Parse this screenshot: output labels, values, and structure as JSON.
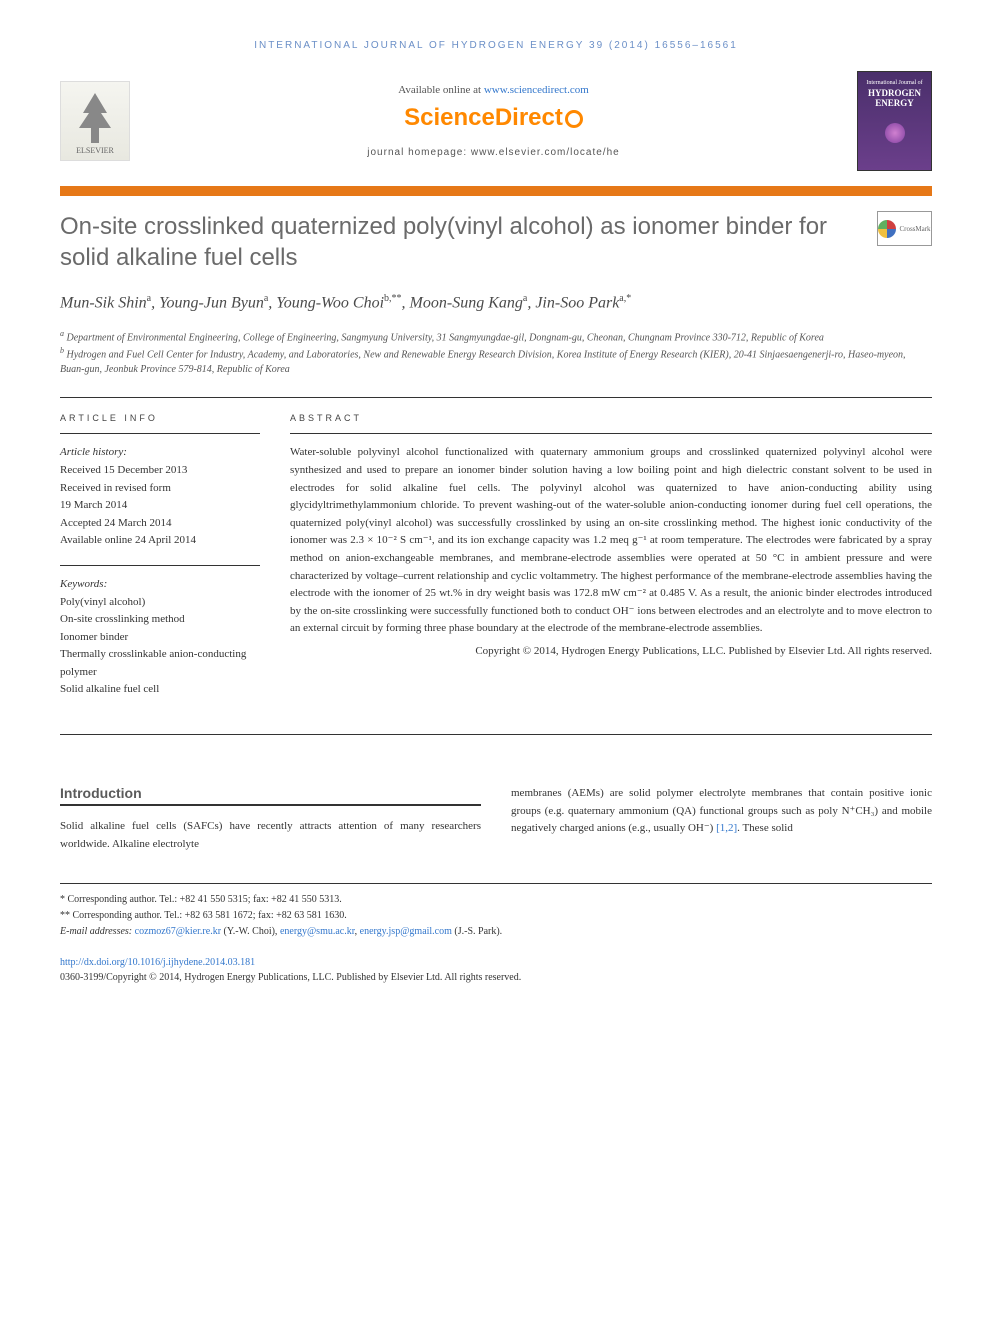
{
  "journal_header": "INTERNATIONAL JOURNAL OF HYDROGEN ENERGY 39 (2014) 16556–16561",
  "available_online": "Available online at ",
  "sciencedirect_url": "www.sciencedirect.com",
  "sciencedirect_label": "ScienceDirect",
  "homepage_label": "journal homepage: www.elsevier.com/locate/he",
  "elsevier_label": "ELSEVIER",
  "cover": {
    "line1": "International Journal of",
    "line2": "HYDROGEN",
    "line3": "ENERGY"
  },
  "crossmark_label": "CrossMark",
  "title": "On-site crosslinked quaternized poly(vinyl alcohol) as ionomer binder for solid alkaline fuel cells",
  "authors_html": "Mun-Sik Shin<sup>a</sup>, Young-Jun Byun<sup>a</sup>, Young-Woo Choi<sup>b,**</sup>, Moon-Sung Kang<sup>a</sup>, Jin-Soo Park<sup>a,*</sup>",
  "affiliations": {
    "a": "Department of Environmental Engineering, College of Engineering, Sangmyung University, 31 Sangmyungdae-gil, Dongnam-gu, Cheonan, Chungnam Province 330-712, Republic of Korea",
    "b": "Hydrogen and Fuel Cell Center for Industry, Academy, and Laboratories, New and Renewable Energy Research Division, Korea Institute of Energy Research (KIER), 20-41 Sinjaesaengenerji-ro, Haseo-myeon, Buan-gun, Jeonbuk Province 579-814, Republic of Korea"
  },
  "info_heading": "ARTICLE INFO",
  "abstract_heading": "ABSTRACT",
  "history_label": "Article history:",
  "history": [
    "Received 15 December 2013",
    "Received in revised form",
    "19 March 2014",
    "Accepted 24 March 2014",
    "Available online 24 April 2014"
  ],
  "keywords_label": "Keywords:",
  "keywords": [
    "Poly(vinyl alcohol)",
    "On-site crosslinking method",
    "Ionomer binder",
    "Thermally crosslinkable anion-conducting polymer",
    "Solid alkaline fuel cell"
  ],
  "abstract": "Water-soluble polyvinyl alcohol functionalized with quaternary ammonium groups and crosslinked quaternized polyvinyl alcohol were synthesized and used to prepare an ionomer binder solution having a low boiling point and high dielectric constant solvent to be used in electrodes for solid alkaline fuel cells. The polyvinyl alcohol was quaternized to have anion-conducting ability using glycidyltrimethylammonium chloride. To prevent washing-out of the water-soluble anion-conducting ionomer during fuel cell operations, the quaternized poly(vinyl alcohol) was successfully crosslinked by using an on-site crosslinking method. The highest ionic conductivity of the ionomer was 2.3 × 10⁻² S cm⁻¹, and its ion exchange capacity was 1.2 meq g⁻¹ at room temperature. The electrodes were fabricated by a spray method on anion-exchangeable membranes, and membrane-electrode assemblies were operated at 50 °C in ambient pressure and were characterized by voltage–current relationship and cyclic voltammetry. The highest performance of the membrane-electrode assemblies having the electrode with the ionomer of 25 wt.% in dry weight basis was 172.8 mW cm⁻² at 0.485 V. As a result, the anionic binder electrodes introduced by the on-site crosslinking were successfully functioned both to conduct OH⁻ ions between electrodes and an electrolyte and to move electron to an external circuit by forming three phase boundary at the electrode of the membrane-electrode assemblies.",
  "copyright": "Copyright © 2014, Hydrogen Energy Publications, LLC. Published by Elsevier Ltd. All rights reserved.",
  "intro_heading": "Introduction",
  "intro_col1": "Solid alkaline fuel cells (SAFCs) have recently attracts attention of many researchers worldwide. Alkaline electrolyte",
  "intro_col2_pre": "membranes (AEMs) are solid polymer electrolyte membranes that contain positive ionic groups (e.g. quaternary ammonium (QA) functional groups such as poly N⁺CH₃) and mobile negatively charged anions (e.g., usually OH⁻) ",
  "intro_refs": "[1,2]",
  "intro_col2_post": ". These solid",
  "footnotes": {
    "corr1": "* Corresponding author. Tel.: +82 41 550 5315; fax: +82 41 550 5313.",
    "corr2": "** Corresponding author. Tel.: +82 63 581 1672; fax: +82 63 581 1630.",
    "email_label": "E-mail addresses: ",
    "email1": "cozmoz67@kier.re.kr",
    "email1_name": " (Y.-W. Choi), ",
    "email2": "energy@smu.ac.kr",
    "email2_sep": ", ",
    "email3": "energy.jsp@gmail.com",
    "email3_name": " (J.-S. Park)."
  },
  "doi": "http://dx.doi.org/10.1016/j.ijhydene.2014.03.181",
  "issn_line": "0360-3199/Copyright © 2014, Hydrogen Energy Publications, LLC. Published by Elsevier Ltd. All rights reserved."
}
